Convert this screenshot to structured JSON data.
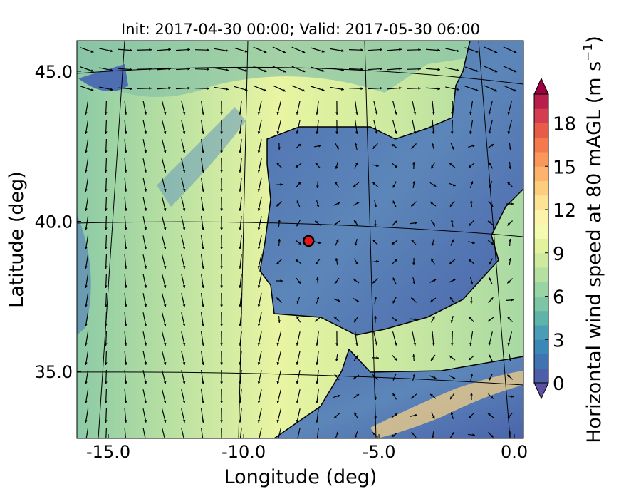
{
  "chart_data": {
    "type": "map",
    "title": "Init: 2017-04-30 00:00; Valid: 2017-05-30 06:00",
    "x_label": "Longitude (deg)",
    "y_label": "Latitude (deg)",
    "xlim": [
      -16.16,
      0.34
    ],
    "ylim": [
      32.77,
      46.02
    ],
    "xticks": [
      {
        "value": -15,
        "label": "-15.0"
      },
      {
        "value": -10,
        "label": "-10.0"
      },
      {
        "value": -5,
        "label": "-5.0"
      },
      {
        "value": 0,
        "label": "0.0"
      }
    ],
    "yticks": [
      {
        "value": 35,
        "label": "35.0"
      },
      {
        "value": 40,
        "label": "40.0"
      },
      {
        "value": 45,
        "label": "45.0"
      }
    ],
    "marker": {
      "lon": -7.6,
      "lat": 39.35,
      "color": "#e8141b"
    },
    "colorbar": {
      "label": "Horizontal wind speed at 80 mAGL (m s",
      "label_exponent": "−1",
      "label_close": ")",
      "clim": [
        0,
        20
      ],
      "ticks": [
        0,
        3,
        6,
        9,
        12,
        15,
        18
      ],
      "colors": [
        "#4c5fa8",
        "#3f73b2",
        "#3a88b8",
        "#4a9db5",
        "#5fb3a9",
        "#7dc6a5",
        "#99d4a4",
        "#b5e0a1",
        "#cdea9e",
        "#e3f39d",
        "#f4fab0",
        "#fdf3aa",
        "#fee394",
        "#fdcd7e",
        "#fdb36b",
        "#fa975b",
        "#f47a4d",
        "#e65c49",
        "#d43d4f",
        "#b81e4a"
      ],
      "under_color": "#5e4fa2",
      "over_color": "#9e0142"
    }
  }
}
